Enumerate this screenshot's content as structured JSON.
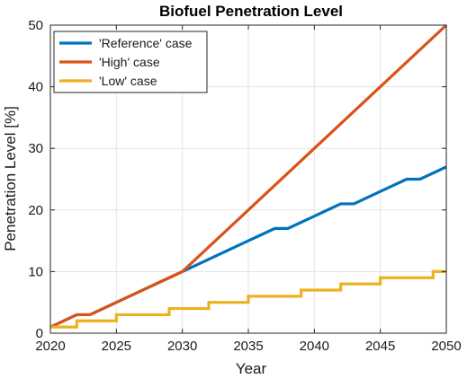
{
  "chart_data": {
    "type": "line",
    "title": "Biofuel Penetration Level",
    "xlabel": "Year",
    "ylabel": "Penetration Level [%]",
    "xlim": [
      2020,
      2050
    ],
    "ylim": [
      0,
      50
    ],
    "xticks": [
      2020,
      2025,
      2030,
      2035,
      2040,
      2045,
      2050
    ],
    "yticks": [
      0,
      10,
      20,
      30,
      40,
      50
    ],
    "grid": true,
    "legend_position": "top-left",
    "series": [
      {
        "name": "'Reference' case",
        "color": "#0072BD",
        "step": false,
        "x": [
          2020,
          2021,
          2022,
          2023,
          2024,
          2025,
          2026,
          2027,
          2028,
          2029,
          2030,
          2031,
          2032,
          2033,
          2034,
          2035,
          2036,
          2037,
          2038,
          2039,
          2040,
          2041,
          2042,
          2043,
          2044,
          2045,
          2046,
          2047,
          2048,
          2049,
          2050
        ],
        "y": [
          1,
          2,
          3,
          3,
          4,
          5,
          6,
          7,
          8,
          9,
          10,
          11,
          12,
          13,
          14,
          15,
          16,
          17,
          17,
          18,
          19,
          20,
          21,
          21,
          22,
          23,
          24,
          25,
          25,
          26,
          27
        ]
      },
      {
        "name": "'High' case",
        "color": "#D95319",
        "step": false,
        "x": [
          2020,
          2021,
          2022,
          2023,
          2024,
          2025,
          2026,
          2027,
          2028,
          2029,
          2030,
          2035,
          2040,
          2045,
          2050
        ],
        "y": [
          1,
          2,
          3,
          3,
          4,
          5,
          6,
          7,
          8,
          9,
          10,
          20,
          30,
          40,
          50
        ]
      },
      {
        "name": "'Low' case",
        "color": "#EDB120",
        "step": true,
        "x": [
          2020,
          2021,
          2022,
          2023,
          2024,
          2025,
          2026,
          2027,
          2028,
          2029,
          2030,
          2031,
          2032,
          2033,
          2034,
          2035,
          2036,
          2037,
          2038,
          2039,
          2040,
          2041,
          2042,
          2043,
          2044,
          2045,
          2046,
          2047,
          2048,
          2049,
          2050
        ],
        "y": [
          1,
          1,
          2,
          2,
          2,
          3,
          3,
          3,
          3,
          4,
          4,
          4,
          5,
          5,
          5,
          6,
          6,
          6,
          6,
          7,
          7,
          7,
          8,
          8,
          8,
          9,
          9,
          9,
          9,
          10,
          10
        ]
      }
    ]
  }
}
